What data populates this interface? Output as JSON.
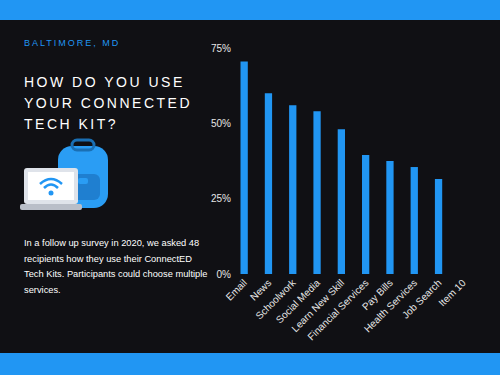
{
  "chart_data": {
    "type": "bar",
    "subtitle": "BALTIMORE, MD",
    "title": "HOW DO YOU USE YOUR CONNECTED TECH KIT?",
    "annotations": [
      "In a follow up survey in 2020, we asked 48 recipients how they use their ConnectED Tech Kits. Participants could choose multiple services."
    ],
    "categories": [
      "Email",
      "News",
      "Schoolwork",
      "Social Media",
      "Learn New Skill",
      "Financial Services",
      "Pay Bills",
      "Health Services",
      "Job Search",
      "Item 10"
    ],
    "values": [
      70.5,
      60,
      56,
      54,
      48,
      39.5,
      37.5,
      35.5,
      31.5,
      null
    ],
    "color": "#2196f3",
    "ylim": [
      0,
      75
    ],
    "yticks": [
      {
        "value": 0,
        "label": "0%"
      },
      {
        "value": 25,
        "label": "25%"
      },
      {
        "value": 50,
        "label": "50%"
      },
      {
        "value": 75,
        "label": "75%"
      }
    ],
    "grid": false
  }
}
